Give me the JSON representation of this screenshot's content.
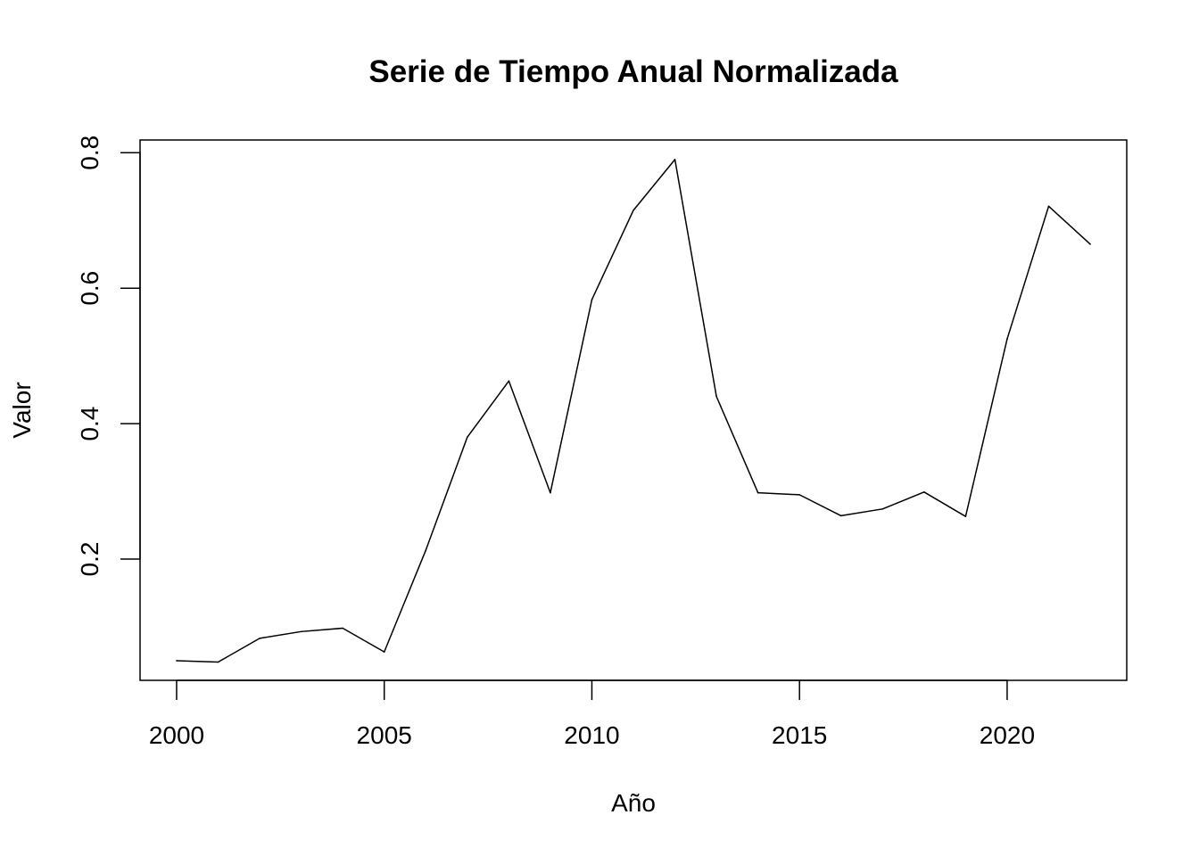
{
  "chart_data": {
    "type": "line",
    "title": "Serie de Tiempo Anual Normalizada",
    "xlabel": "Año",
    "ylabel": "Valor",
    "x": [
      2000,
      2001,
      2002,
      2003,
      2004,
      2005,
      2006,
      2007,
      2008,
      2009,
      2010,
      2011,
      2012,
      2013,
      2014,
      2015,
      2016,
      2017,
      2018,
      2019,
      2020,
      2021,
      2022
    ],
    "series": [
      {
        "values": [
          0.05,
          0.048,
          0.083,
          0.093,
          0.098,
          0.063,
          0.213,
          0.38,
          0.463,
          0.298,
          0.583,
          0.715,
          0.79,
          0.44,
          0.298,
          0.295,
          0.264,
          0.274,
          0.299,
          0.263,
          0.525,
          0.721,
          0.665
        ],
        "color": "#000000"
      }
    ],
    "xticks": [
      "2000",
      "2005",
      "2010",
      "2015",
      "2020"
    ],
    "yticks": [
      "0.2",
      "0.4",
      "0.6",
      "0.8"
    ],
    "xlim": [
      1999.12,
      2022.88
    ],
    "ylim": [
      0.021,
      0.8188
    ],
    "grid": false,
    "legend": "none"
  }
}
